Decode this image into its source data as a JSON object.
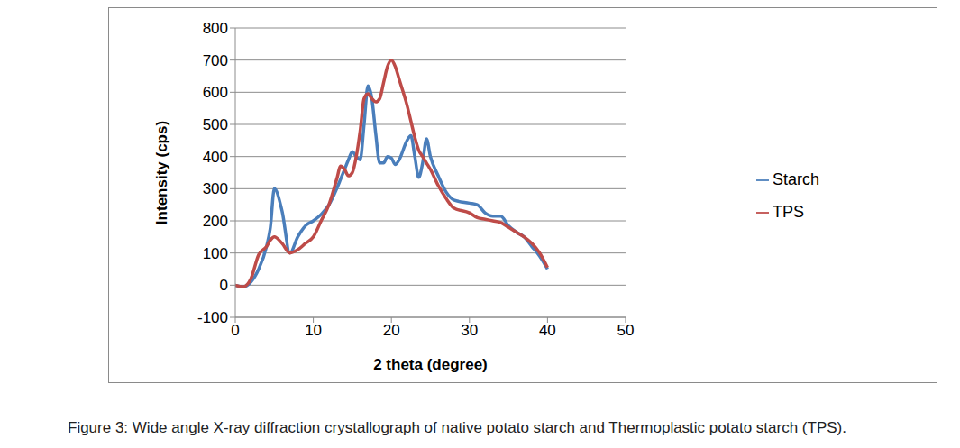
{
  "chart_data": {
    "type": "line",
    "title": "Figure 3: Wide angle X-ray diffraction crystallograph of native potato starch and Thermoplastic potato starch (TPS).",
    "x_label": "2  theta (degree)",
    "y_label": "Intensity (cps)",
    "x": [
      0,
      1,
      2,
      3,
      4,
      4.5,
      5,
      6,
      7,
      8,
      9,
      10,
      11,
      12,
      13,
      13.5,
      14,
      14.5,
      15,
      15.5,
      16,
      16.5,
      17,
      17.5,
      18,
      18.5,
      19,
      19.5,
      20,
      20.5,
      21,
      22,
      22.5,
      23,
      23.5,
      24,
      24.5,
      25,
      26,
      27,
      28,
      30,
      31,
      32,
      33,
      34,
      35,
      36,
      37,
      38,
      39,
      40
    ],
    "series": [
      {
        "name": "Starch",
        "color": "#4a7ebb",
        "values": [
          0,
          -5,
          10,
          50,
          120,
          180,
          300,
          230,
          100,
          150,
          185,
          200,
          220,
          250,
          300,
          330,
          360,
          390,
          415,
          400,
          390,
          500,
          620,
          580,
          470,
          380,
          380,
          400,
          395,
          375,
          390,
          450,
          465,
          400,
          335,
          380,
          455,
          400,
          340,
          290,
          265,
          255,
          250,
          225,
          215,
          215,
          185,
          165,
          150,
          120,
          90,
          50
        ]
      },
      {
        "name": "TPS",
        "color": "#be4b48",
        "values": [
          0,
          -5,
          20,
          95,
          120,
          140,
          150,
          130,
          100,
          110,
          130,
          150,
          200,
          250,
          330,
          370,
          360,
          340,
          350,
          400,
          480,
          580,
          595,
          580,
          570,
          580,
          630,
          680,
          700,
          680,
          640,
          560,
          510,
          460,
          420,
          400,
          380,
          360,
          310,
          270,
          240,
          225,
          210,
          205,
          200,
          195,
          180,
          165,
          150,
          130,
          100,
          55
        ]
      }
    ],
    "xlim": [
      0,
      50
    ],
    "xticks": [
      0,
      10,
      20,
      30,
      40,
      50
    ],
    "ylim": [
      -100,
      800
    ],
    "yticks": [
      -100,
      0,
      100,
      200,
      300,
      400,
      500,
      600,
      700,
      800
    ],
    "grid": true,
    "legend": "right"
  }
}
